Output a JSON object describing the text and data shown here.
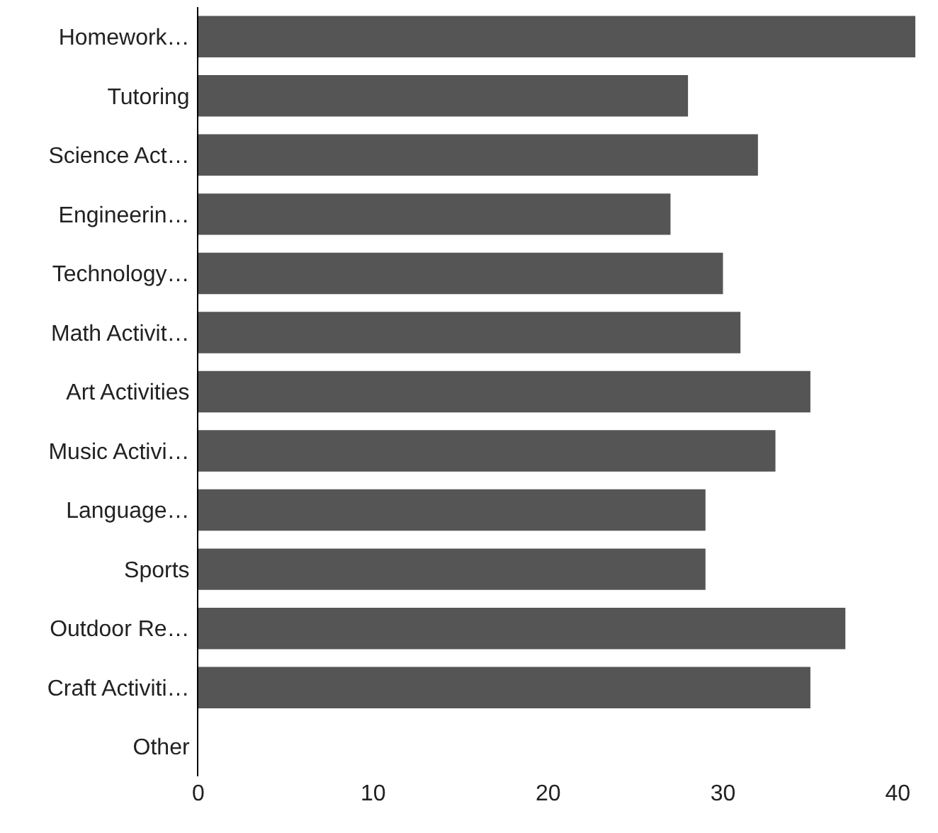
{
  "chart_data": {
    "type": "bar",
    "orientation": "horizontal",
    "categories": [
      "Homework…",
      "Tutoring",
      "Science Act…",
      "Engineerin…",
      "Technology…",
      "Math Activit…",
      "Art Activities",
      "Music Activi…",
      "Language…",
      "Sports",
      "Outdoor Re…",
      "Craft Activiti…",
      "Other"
    ],
    "values": [
      41,
      28,
      32,
      27,
      30,
      31,
      35,
      33,
      29,
      29,
      37,
      35,
      0
    ],
    "color": "#555555",
    "xlim": [
      0,
      41
    ],
    "xticks": [
      0,
      10,
      20,
      30,
      40
    ],
    "grid": false
  }
}
